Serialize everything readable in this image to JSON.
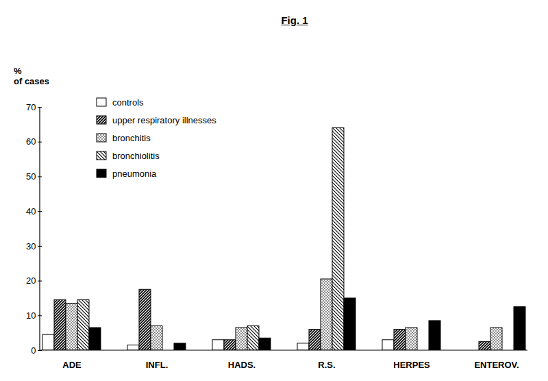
{
  "chart_data": {
    "type": "bar",
    "title": "Fig. 1",
    "ylabel": "% of cases",
    "categories": [
      "ADE",
      "INFL.",
      "HADS.",
      "R.S.",
      "HERPES",
      "ENTEROV."
    ],
    "series": [
      {
        "name": "controls",
        "color": "white",
        "values": [
          4.5,
          1.5,
          3,
          2,
          3,
          null
        ]
      },
      {
        "name": "upper respiratory illnesses",
        "color": "black",
        "values": [
          14.5,
          17.5,
          3,
          6,
          6,
          2.5
        ]
      },
      {
        "name": "bronchitis",
        "color": "black",
        "values": [
          13.5,
          7,
          6.5,
          20.5,
          6.5,
          6.5
        ]
      },
      {
        "name": "bronchiolitis",
        "color": "black",
        "values": [
          14.5,
          null,
          7,
          64,
          null,
          null
        ]
      },
      {
        "name": "pneumonia",
        "color": "black",
        "values": [
          6.5,
          2,
          3.5,
          15,
          8.5,
          12.5
        ]
      }
    ],
    "ylim": [
      0,
      70
    ],
    "yticks": [
      0,
      10,
      20,
      30,
      40,
      50,
      60,
      70
    ],
    "grid": false,
    "legend": "top-left"
  }
}
